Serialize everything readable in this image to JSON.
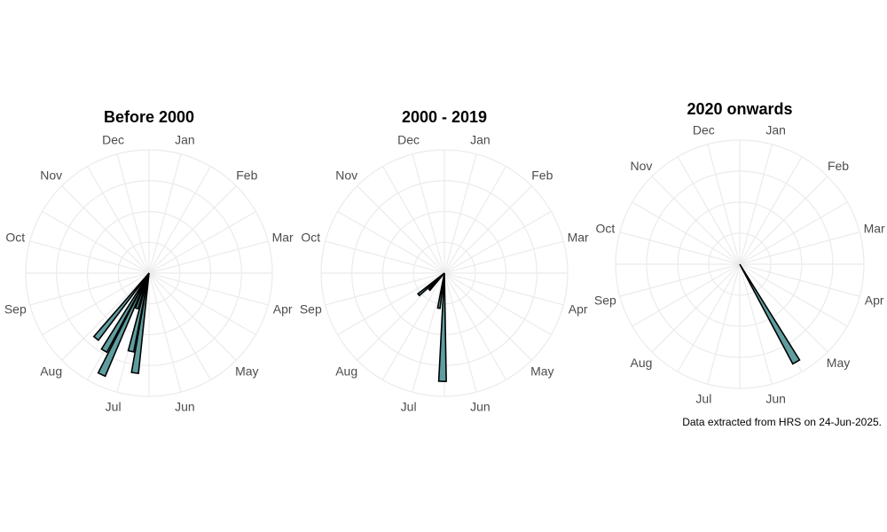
{
  "caption": "Data extracted from HRS on 24-Jun-2025.",
  "colors": {
    "bar_fill": "#5f9ea0",
    "bar_outline": "#000000",
    "grid": "#ebebeb",
    "axis_text": "#4d4d4d"
  },
  "chart_data": [
    {
      "type": "polar-bar",
      "title": "Before 2000",
      "months": [
        "Jan",
        "Feb",
        "Mar",
        "Apr",
        "May",
        "Jun",
        "Jul",
        "Aug",
        "Sep",
        "Oct",
        "Nov",
        "Dec"
      ],
      "bars": [
        {
          "angle_deg": 188,
          "value": 5.4,
          "width_deg": 4
        },
        {
          "angle_deg": 193,
          "value": 4.3,
          "width_deg": 4
        },
        {
          "angle_deg": 205,
          "value": 6.0,
          "width_deg": 4
        },
        {
          "angle_deg": 210,
          "value": 4.8,
          "width_deg": 4
        },
        {
          "angle_deg": 219,
          "value": 4.5,
          "width_deg": 4
        },
        {
          "angle_deg": 199,
          "value": 2.0,
          "width_deg": 4
        }
      ],
      "rmax": 6.6,
      "grid": true
    },
    {
      "type": "polar-bar",
      "title": "2000 - 2019",
      "months": [
        "Jan",
        "Feb",
        "Mar",
        "Apr",
        "May",
        "Jun",
        "Jul",
        "Aug",
        "Sep",
        "Oct",
        "Nov",
        "Dec"
      ],
      "bars": [
        {
          "angle_deg": 181,
          "value": 5.8,
          "width_deg": 4
        },
        {
          "angle_deg": 189,
          "value": 1.9,
          "width_deg": 4
        },
        {
          "angle_deg": 222,
          "value": 1.2,
          "width_deg": 4
        },
        {
          "angle_deg": 230,
          "value": 1.8,
          "width_deg": 4
        }
      ],
      "rmax": 6.6,
      "grid": true
    },
    {
      "type": "polar-bar",
      "title": "2020 onwards",
      "months": [
        "Jan",
        "Feb",
        "Mar",
        "Apr",
        "May",
        "Jun",
        "Jul",
        "Aug",
        "Sep",
        "Oct",
        "Nov",
        "Dec"
      ],
      "bars": [
        {
          "angle_deg": 150,
          "value": 6.0,
          "width_deg": 4
        }
      ],
      "rmax": 6.6,
      "grid": true
    }
  ]
}
